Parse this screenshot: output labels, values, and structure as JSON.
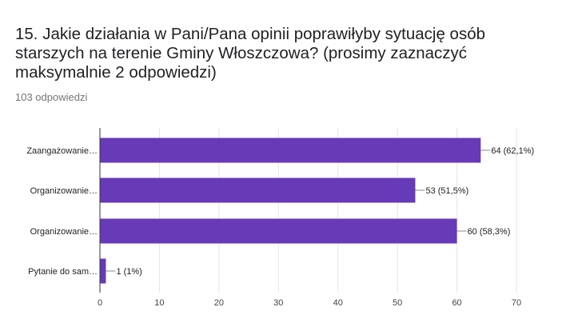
{
  "question": {
    "title": "15. Jakie działania w Pani/Pana opinii poprawiłyby sytuację osób starszych na terenie Gminy Włoszczowa? (prosimy zaznaczyć maksymalnie 2 odpowiedzi)",
    "response_count": "103 odpowiedzi"
  },
  "colors": {
    "bar": "#673ab7",
    "grid": "#e6e6e6",
    "axis": "#333333"
  },
  "chart_data": {
    "type": "bar",
    "orientation": "horizontal",
    "categories": [
      "Zaangażowanie…",
      "Organizowanie…",
      "Organizowanie…",
      "Pytanie do sam…"
    ],
    "values": [
      64,
      53,
      60,
      1
    ],
    "data_labels": [
      "64 (62,1%)",
      "53 (51,5%)",
      "60 (58,3%)",
      "1 (1%)"
    ],
    "xlim": [
      0,
      70
    ],
    "xticks": [
      0,
      10,
      20,
      30,
      40,
      50,
      60,
      70
    ],
    "grid": true,
    "legend": "none"
  }
}
